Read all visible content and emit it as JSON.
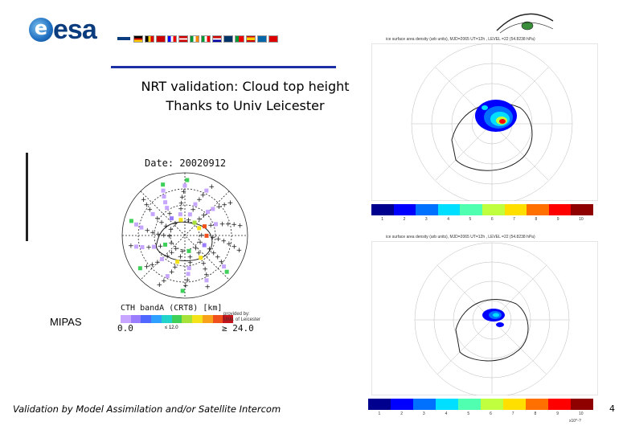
{
  "header": {
    "logo_text": "esa",
    "logo_e": "e"
  },
  "slide": {
    "title_line1": "NRT validation: Cloud top height",
    "title_line2": "Thanks to Univ Leicester",
    "footer": "Validation by Model Assimilation and/or Satellite Intercom",
    "page_number": "4"
  },
  "mipas_plot": {
    "instrument_label": "MIPAS",
    "date_label": "Date: 20020912",
    "colorbar_title": "CTH_bandA (CRT8) [km]",
    "colorbar_min": "0.0",
    "colorbar_mid": "≤ 12.0",
    "colorbar_max": "≥ 24.0",
    "credit_line1": "provided by:",
    "credit_line2": "Univ. of Leicester",
    "colorbar_colors": [
      "#c6a6ff",
      "#9a7cff",
      "#4f66ff",
      "#2fa0ff",
      "#22d3c9",
      "#3fd05a",
      "#a6e23a",
      "#f4e21b",
      "#f7a21a",
      "#f0501b",
      "#c4141b"
    ]
  },
  "model_map_top": {
    "title": "ice surface area density (arb units), MJD=2065  UT=12h , LEVEL =22 (54.8238 hPa)",
    "colorbar_ticks": [
      "1",
      "2",
      "3",
      "4",
      "5",
      "6",
      "7",
      "8",
      "9",
      "10"
    ]
  },
  "model_map_bottom": {
    "title": "ice surface area density (arb units), MJD=2065  UT=12h , LEVEL =22 (54.8238 hPa)",
    "colorbar_ticks": [
      "1",
      "2",
      "3",
      "4",
      "5",
      "6",
      "7",
      "8",
      "9",
      "10"
    ],
    "colorbar_unit": "x10^-?"
  },
  "colors": {
    "title_bar": "#1c2fa5",
    "esa_blue": "#0b3d7e",
    "jet": [
      "#00008f",
      "#0000ff",
      "#0070ff",
      "#00dfff",
      "#50ffaf",
      "#bfff40",
      "#ffdf00",
      "#ff7000",
      "#ff0000",
      "#8f0000"
    ]
  }
}
